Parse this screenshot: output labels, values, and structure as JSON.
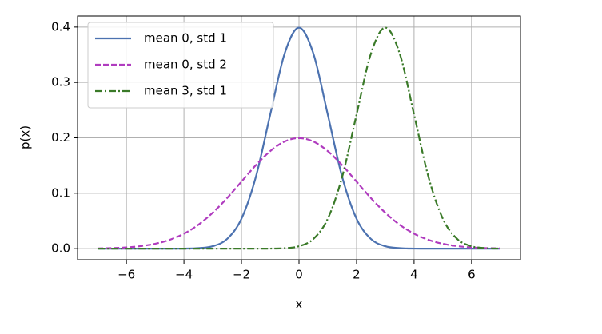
{
  "chart_data": {
    "type": "line",
    "xlabel": "x",
    "ylabel": "p(x)",
    "x": [
      -7,
      -6.5,
      -6,
      -5.5,
      -5,
      -4.5,
      -4,
      -3.5,
      -3,
      -2.5,
      -2,
      -1.5,
      -1,
      -0.5,
      0,
      0.5,
      1,
      1.5,
      2,
      2.5,
      3,
      3.5,
      4,
      4.5,
      5,
      5.5,
      6,
      6.5,
      7
    ],
    "series": [
      {
        "name": "mean 0, std 1",
        "color": "#4c72b0",
        "dash": "solid",
        "values": [
          0,
          0,
          0,
          0,
          0,
          0,
          0.0001,
          0.0009,
          0.0044,
          0.0175,
          0.054,
          0.1295,
          0.242,
          0.3521,
          0.3989,
          0.3521,
          0.242,
          0.1295,
          0.054,
          0.0175,
          0.0044,
          0.0009,
          0.0001,
          0,
          0,
          0,
          0,
          0,
          0
        ]
      },
      {
        "name": "mean 0, std 2",
        "color": "#b03cbf",
        "dash": "dashed",
        "values": [
          0.0004,
          0.001,
          0.0022,
          0.0046,
          0.0088,
          0.0159,
          0.027,
          0.0431,
          0.0648,
          0.0913,
          0.121,
          0.1506,
          0.176,
          0.1933,
          0.1995,
          0.1933,
          0.176,
          0.1506,
          0.121,
          0.0913,
          0.0648,
          0.0431,
          0.027,
          0.0159,
          0.0088,
          0.0046,
          0.0022,
          0.001,
          0.0004
        ]
      },
      {
        "name": "mean 3, std 1",
        "color": "#3a7a28",
        "dash": "dashdot",
        "values": [
          0,
          0,
          0,
          0,
          0,
          0,
          0,
          0,
          0,
          0,
          0,
          0,
          0.0001,
          0.0009,
          0.0044,
          0.0175,
          0.054,
          0.1295,
          0.242,
          0.3521,
          0.3989,
          0.3521,
          0.242,
          0.1295,
          0.054,
          0.0175,
          0.0044,
          0.0009,
          0.0001
        ]
      }
    ],
    "xlim": [
      -7.7,
      7.7
    ],
    "xticks": [
      {
        "value": -6,
        "label": "−6"
      },
      {
        "value": -4,
        "label": "−4"
      },
      {
        "value": -2,
        "label": "−2"
      },
      0,
      2,
      4,
      6
    ],
    "ylim": [
      -0.02,
      0.42
    ],
    "yticks": [
      {
        "value": 0,
        "label": "0.0"
      },
      0.1,
      0.2,
      0.3,
      0.4
    ],
    "grid": true,
    "legend": "upper left"
  }
}
